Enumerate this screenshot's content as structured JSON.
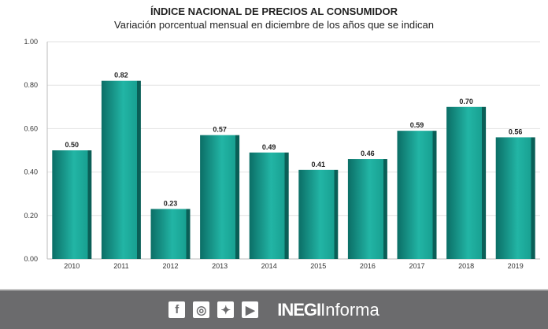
{
  "chart_data": {
    "type": "bar",
    "title": "ÍNDICE NACIONAL DE PRECIOS AL CONSUMIDOR",
    "subtitle": "Variación porcentual mensual en diciembre de los años que se indican",
    "categories": [
      "2010",
      "2011",
      "2012",
      "2013",
      "2014",
      "2015",
      "2016",
      "2017",
      "2018",
      "2019"
    ],
    "values": [
      0.5,
      0.82,
      0.23,
      0.57,
      0.49,
      0.41,
      0.46,
      0.59,
      0.7,
      0.56
    ],
    "labels": [
      "0.50",
      "0.82",
      "0.23",
      "0.57",
      "0.49",
      "0.41",
      "0.46",
      "0.59",
      "0.70",
      "0.56"
    ],
    "yticks": [
      "0.00",
      "0.20",
      "0.40",
      "0.60",
      "0.80",
      "1.00"
    ],
    "ylim": [
      0,
      1
    ],
    "xlabel": "",
    "ylabel": "",
    "bar_color": "#1a9e90"
  },
  "footer": {
    "icons": [
      "facebook-icon",
      "instagram-icon",
      "twitter-icon",
      "youtube-icon"
    ],
    "brand_bold": "INEGI",
    "brand_light": "Informa"
  }
}
